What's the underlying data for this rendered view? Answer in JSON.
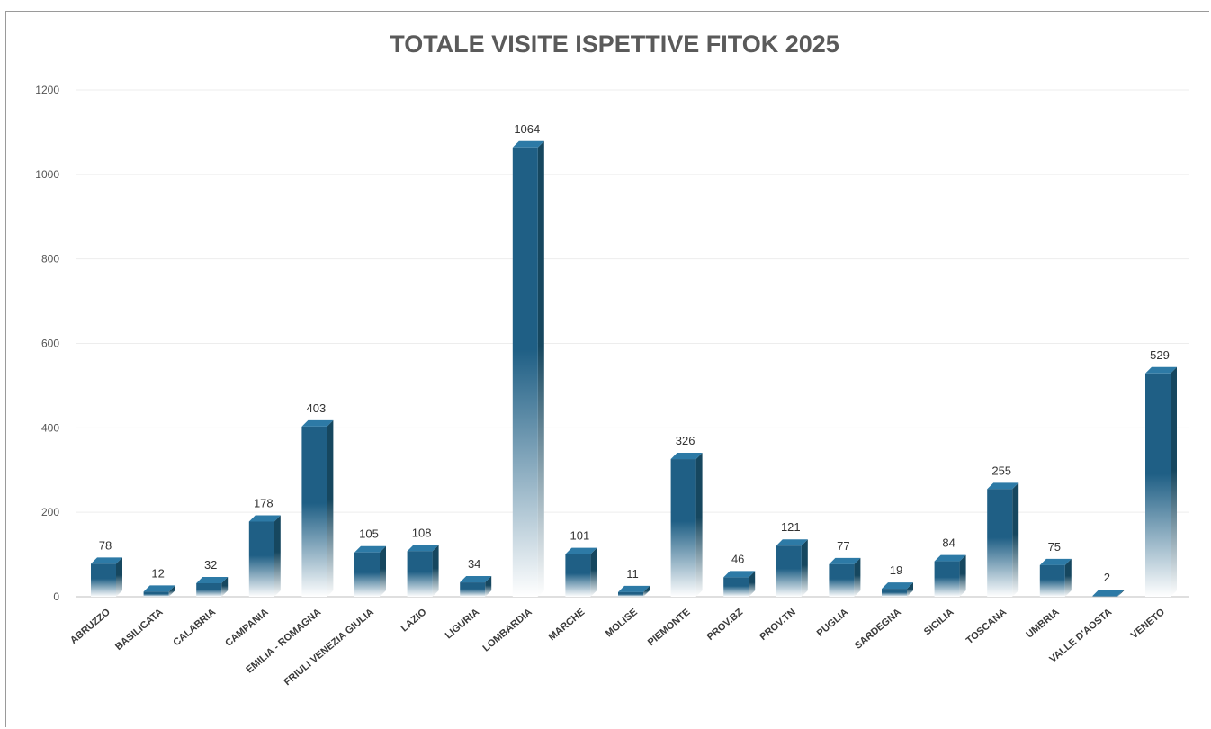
{
  "chart_data": {
    "type": "bar",
    "title": "TOTALE VISITE ISPETTIVE FITOK 2025",
    "xlabel": "",
    "ylabel": "",
    "ylim": [
      0,
      1200
    ],
    "yticks": [
      0,
      200,
      400,
      600,
      800,
      1000,
      1200
    ],
    "grid": true,
    "legend": "none",
    "categories": [
      "ABRUZZO",
      "BASILICATA",
      "CALABRIA",
      "CAMPANIA",
      "EMILIA - ROMAGNA",
      "FRIULI VENEZIA GIULIA",
      "LAZIO",
      "LIGURIA",
      "LOMBARDIA",
      "MARCHE",
      "MOLISE",
      "PIEMONTE",
      "PROV.BZ",
      "PROV.TN",
      "PUGLIA",
      "SARDEGNA",
      "SICILIA",
      "TOSCANA",
      "UMBRIA",
      "VALLE D'AOSTA",
      "VENETO"
    ],
    "values": [
      78,
      12,
      32,
      178,
      403,
      105,
      108,
      34,
      1064,
      101,
      11,
      326,
      46,
      121,
      77,
      19,
      84,
      255,
      75,
      2,
      529
    ],
    "colors": {
      "bar_front": "#1f5f85",
      "bar_side": "#16475f",
      "bar_top": "#2d7aa6",
      "bar_fade": "#ffffff",
      "grid": "#ededed",
      "axis": "#bfbfbf"
    }
  }
}
